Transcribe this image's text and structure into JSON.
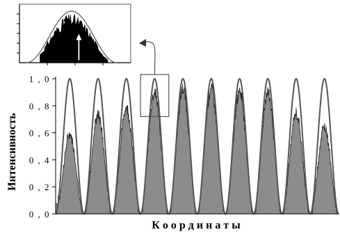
{
  "chart_data": {
    "type": "area",
    "xlabel": "К о о р д и н а т ы",
    "ylabel": "Интенсивность",
    "ylim": [
      0,
      1.0
    ],
    "yticks": [
      "0 , 0",
      "0 , 2",
      "0 , 4",
      "0 , 6",
      "0 , 8",
      "1 , 0"
    ],
    "ytick_values": [
      0,
      0.2,
      0.4,
      0.6,
      0.8,
      1.0
    ],
    "x_range": [
      0,
      10
    ],
    "series": [
      {
        "style": "line",
        "description_hidden": true,
        "peaks_x": [
          0.5,
          1.5,
          2.5,
          3.5,
          4.5,
          5.5,
          6.5,
          7.5,
          8.5,
          9.5
        ],
        "peak_values": [
          1.0,
          1.0,
          1.0,
          1.0,
          1.0,
          1.0,
          1.0,
          1.0,
          1.0,
          1.0
        ],
        "min_value": 0.0
      },
      {
        "style": "filled",
        "peaks_x": [
          0.5,
          1.5,
          2.5,
          3.5,
          4.5,
          5.5,
          6.5,
          7.5,
          8.5,
          9.5
        ],
        "peak_values": [
          0.62,
          0.77,
          0.83,
          0.95,
          0.97,
          0.98,
          0.96,
          0.95,
          0.78,
          0.68
        ]
      }
    ],
    "edge_start_value": 0.22,
    "inset": {
      "zoomed_peak_index": 3,
      "arrows": [
        "up-black",
        "up-white"
      ]
    },
    "colors": {
      "line": "#555555",
      "fill": "#8c8c8c",
      "fill_edge": "#222222",
      "inset_fill": "#000000"
    }
  }
}
